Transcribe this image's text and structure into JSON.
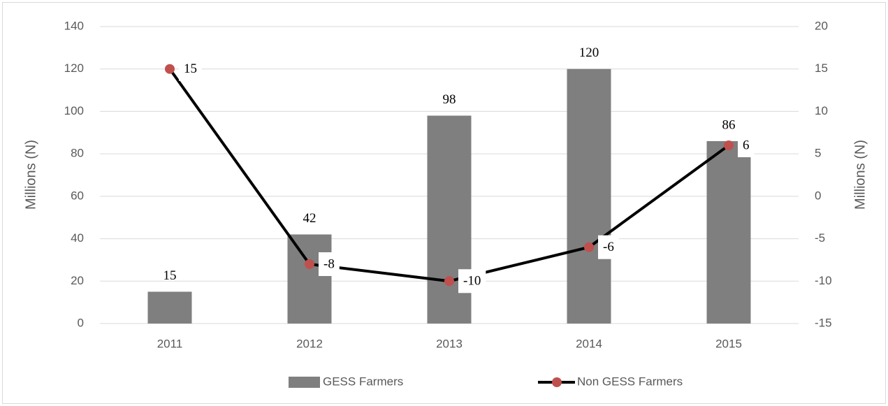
{
  "chart_data": {
    "type": "bar",
    "categories": [
      "2011",
      "2012",
      "2013",
      "2014",
      "2015"
    ],
    "series": [
      {
        "name": "GESS Farmers",
        "type": "bar",
        "color": "#7f7f7f",
        "values": [
          15,
          42,
          98,
          120,
          86
        ]
      },
      {
        "name": "Non GESS Farmers",
        "type": "line",
        "axis": "y2",
        "color": "#000000",
        "marker_color": "#c0504d",
        "values": [
          15,
          -8,
          -10,
          -6,
          6
        ]
      }
    ],
    "ylabel": "Millions (N)",
    "y2label": "Millions (N)",
    "ylim": [
      0,
      140
    ],
    "yticks": [
      0,
      20,
      40,
      60,
      80,
      100,
      120,
      140
    ],
    "y2lim": [
      -15,
      20
    ],
    "y2ticks": [
      -15,
      -10,
      -5,
      0,
      5,
      10,
      15,
      20
    ],
    "grid": true,
    "legend": "bottom"
  }
}
